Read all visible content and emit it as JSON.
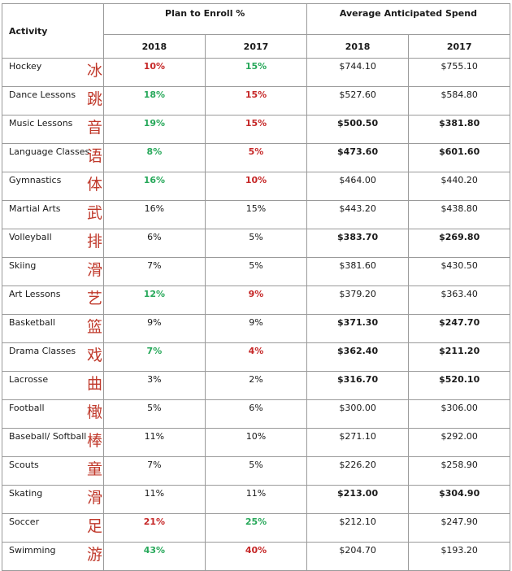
{
  "headers": {
    "activity": "Activity",
    "plan_to_enroll": "Plan to Enroll %",
    "avg_spend": "Average Anticipated Spend",
    "year_a": "2018",
    "year_b": "2017"
  },
  "colors": {
    "green": "#27a85a",
    "red": "#c62828",
    "chinese": "#c0392b"
  },
  "rows": [
    {
      "activity": "Hockey",
      "zh": "冰球",
      "p2018": "10%",
      "p2017": "15%",
      "s2018": "$744.10",
      "s2017": "$755.10"
    },
    {
      "activity": "Dance Lessons",
      "zh": "跳舞",
      "p2018": "18%",
      "p2017": "15%",
      "s2018": "$527.60",
      "s2017": "$584.80"
    },
    {
      "activity": "Music Lessons",
      "zh": "音乐",
      "p2018": "19%",
      "p2017": "15%",
      "s2018": "$500.50",
      "s2017": "$381.80"
    },
    {
      "activity": "Language Classes",
      "zh": "语言",
      "p2018": "8%",
      "p2017": "5%",
      "s2018": "$473.60",
      "s2017": "$601.60"
    },
    {
      "activity": "Gymnastics",
      "zh": "体操",
      "p2018": "16%",
      "p2017": "10%",
      "s2018": "$464.00",
      "s2017": "$440.20"
    },
    {
      "activity": "Martial Arts",
      "zh": "武术",
      "p2018": "16%",
      "p2017": "15%",
      "s2018": "$443.20",
      "s2017": "$438.80"
    },
    {
      "activity": "Volleyball",
      "zh": "排球",
      "p2018": "6%",
      "p2017": "5%",
      "s2018": "$383.70",
      "s2017": "$269.80"
    },
    {
      "activity": "Skiing",
      "zh": "滑雪",
      "p2018": "7%",
      "p2017": "5%",
      "s2018": "$381.60",
      "s2017": "$430.50"
    },
    {
      "activity": "Art Lessons",
      "zh": "艺术",
      "p2018": "12%",
      "p2017": "9%",
      "s2018": "$379.20",
      "s2017": "$363.40"
    },
    {
      "activity": "Basketball",
      "zh": "篮球",
      "p2018": "9%",
      "p2017": "9%",
      "s2018": "$371.30",
      "s2017": "$247.70"
    },
    {
      "activity": "Drama Classes",
      "zh": "戏剧",
      "p2018": "7%",
      "p2017": "4%",
      "s2018": "$362.40",
      "s2017": "$211.20"
    },
    {
      "activity": "Lacrosse",
      "zh": "曲棍球",
      "p2018": "3%",
      "p2017": "2%",
      "s2018": "$316.70",
      "s2017": "$520.10"
    },
    {
      "activity": "Football",
      "zh": "橄榄球",
      "p2018": "5%",
      "p2017": "6%",
      "s2018": "$300.00",
      "s2017": "$306.00"
    },
    {
      "activity": "Baseball/ Softball",
      "zh": "棒球",
      "p2018": "11%",
      "p2017": "10%",
      "s2018": "$271.10",
      "s2017": "$292.00"
    },
    {
      "activity": "Scouts",
      "zh": "童子军",
      "p2018": "7%",
      "p2017": "5%",
      "s2018": "$226.20",
      "s2017": "$258.90"
    },
    {
      "activity": "Skating",
      "zh": "滑冰",
      "p2018": "11%",
      "p2017": "11%",
      "s2018": "$213.00",
      "s2017": "$304.90"
    },
    {
      "activity": "Soccer",
      "zh": "足球",
      "p2018": "21%",
      "p2017": "25%",
      "s2018": "$212.10",
      "s2017": "$247.90"
    },
    {
      "activity": "Swimming",
      "zh": "游泳",
      "p2018": "43%",
      "p2017": "40%",
      "s2018": "$204.70",
      "s2017": "$193.20"
    }
  ]
}
